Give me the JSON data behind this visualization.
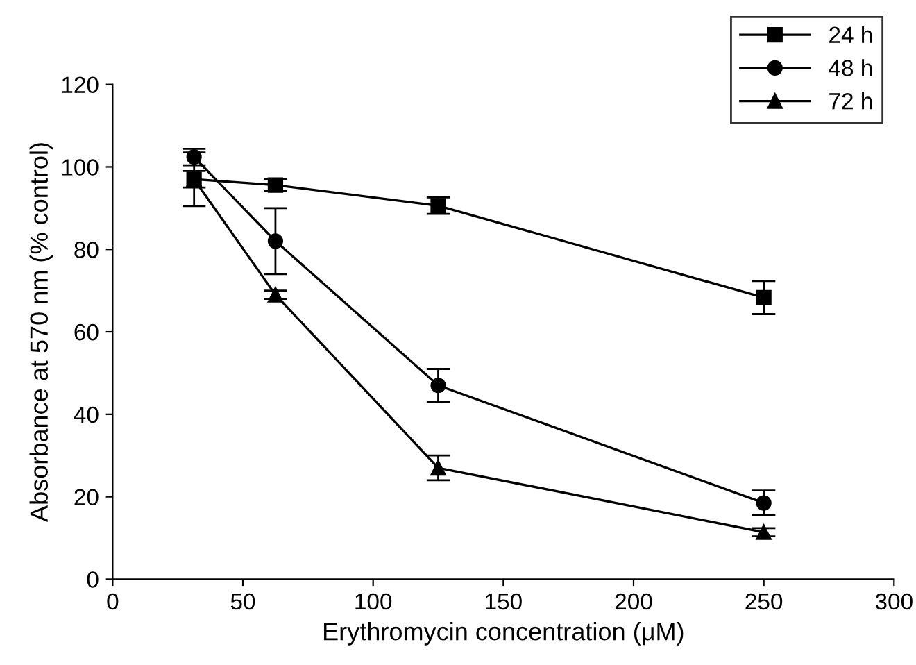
{
  "chart_data": {
    "type": "line",
    "xlabel": "Erythromycin concentration (μM)",
    "ylabel": "Absorbance at 570 nm (% control)",
    "x": [
      31.25,
      62.5,
      125,
      250
    ],
    "series": [
      {
        "name": "24 h",
        "color": "#000000",
        "marker": "square",
        "values": [
          97,
          95.6,
          90.6,
          68.3
        ],
        "errors": [
          6.5,
          1.5,
          2,
          4
        ]
      },
      {
        "name": "48 h",
        "color": "#000000",
        "marker": "circle",
        "values": [
          102.4,
          82,
          47,
          18.5
        ],
        "errors": [
          2,
          8,
          4,
          3
        ]
      },
      {
        "name": "72 h",
        "color": "#000000",
        "marker": "triangle",
        "values": [
          97,
          69,
          27,
          11.4
        ],
        "errors": [
          2,
          1,
          3,
          1
        ]
      }
    ],
    "xlim": [
      0,
      300
    ],
    "xticks": [
      0,
      50,
      100,
      150,
      200,
      250,
      300
    ],
    "ylim": [
      0,
      120
    ],
    "yticks": [
      0,
      20,
      40,
      60,
      80,
      100,
      120
    ],
    "grid": false,
    "legend": "top right",
    "line_style": "solid"
  }
}
